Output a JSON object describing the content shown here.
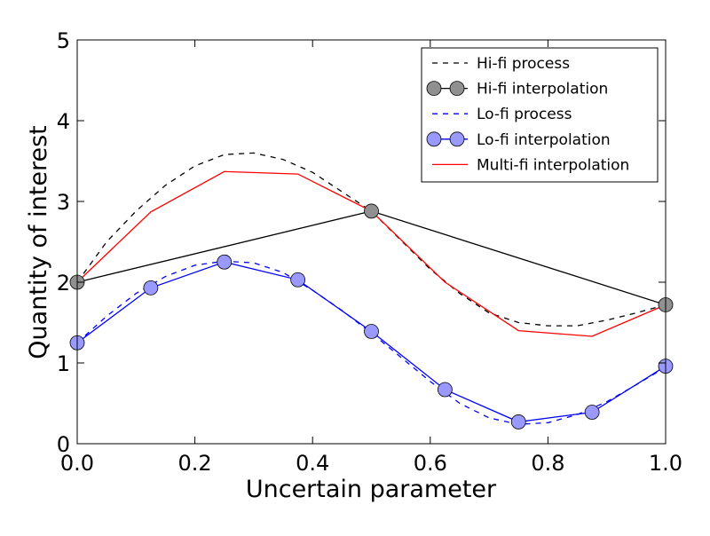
{
  "chart_data": {
    "type": "line",
    "xlabel": "Uncertain parameter",
    "ylabel": "Quantity of interest",
    "xlim": [
      0.0,
      1.0
    ],
    "ylim": [
      0,
      5
    ],
    "xticks": [
      "0.0",
      "0.2",
      "0.4",
      "0.6",
      "0.8",
      "1.0"
    ],
    "yticks": [
      "0",
      "1",
      "2",
      "3",
      "4",
      "5"
    ],
    "grid": false,
    "legend_position": "top-right",
    "series": [
      {
        "name": "Hi-fi process",
        "style": "dashed",
        "color": "#000000",
        "marker": "none",
        "x": [
          0.0,
          0.05,
          0.1,
          0.15,
          0.2,
          0.25,
          0.3,
          0.35,
          0.4,
          0.45,
          0.5,
          0.55,
          0.6,
          0.65,
          0.7,
          0.75,
          0.8,
          0.85,
          0.9,
          0.95,
          1.0
        ],
        "y": [
          2.0,
          2.5,
          2.88,
          3.2,
          3.44,
          3.58,
          3.6,
          3.52,
          3.36,
          3.12,
          2.88,
          2.52,
          2.16,
          1.86,
          1.62,
          1.5,
          1.46,
          1.46,
          1.53,
          1.62,
          1.72
        ]
      },
      {
        "name": "Hi-fi interpolation",
        "style": "solid",
        "color": "#000000",
        "marker": "circle",
        "marker_color": "#909090",
        "x": [
          0.0,
          0.5,
          1.0
        ],
        "y": [
          2.0,
          2.88,
          1.72
        ]
      },
      {
        "name": "Lo-fi process",
        "style": "dashed",
        "color": "#0000ff",
        "marker": "none",
        "x": [
          0.0,
          0.05,
          0.1,
          0.15,
          0.2,
          0.25,
          0.3,
          0.35,
          0.4,
          0.45,
          0.5,
          0.55,
          0.6,
          0.65,
          0.7,
          0.75,
          0.8,
          0.85,
          0.9,
          0.95,
          1.0
        ],
        "y": [
          1.25,
          1.58,
          1.86,
          2.07,
          2.21,
          2.26,
          2.24,
          2.12,
          1.9,
          1.65,
          1.37,
          1.07,
          0.77,
          0.5,
          0.32,
          0.24,
          0.26,
          0.36,
          0.52,
          0.73,
          0.95
        ]
      },
      {
        "name": "Lo-fi interpolation",
        "style": "solid",
        "color": "#0000ff",
        "marker": "circle",
        "marker_color": "#9999ff",
        "x": [
          0.0,
          0.125,
          0.25,
          0.375,
          0.5,
          0.625,
          0.75,
          0.875,
          1.0
        ],
        "y": [
          1.25,
          1.93,
          2.25,
          2.03,
          1.39,
          0.67,
          0.27,
          0.39,
          0.96
        ]
      },
      {
        "name": "Multi-fi interpolation",
        "style": "solid",
        "color": "#ff0000",
        "marker": "none",
        "x": [
          0.0,
          0.125,
          0.25,
          0.375,
          0.5,
          0.625,
          0.75,
          0.875,
          1.0
        ],
        "y": [
          2.0,
          2.87,
          3.37,
          3.34,
          2.88,
          2.0,
          1.4,
          1.33,
          1.72
        ]
      }
    ]
  }
}
